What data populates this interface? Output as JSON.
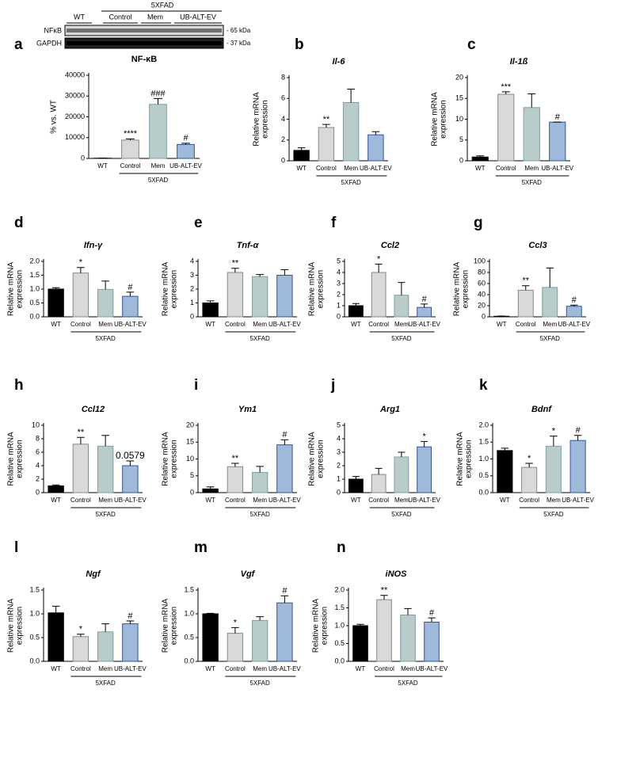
{
  "blot": {
    "group": "5XFAD",
    "lanes": [
      "WT",
      "Control",
      "Mem",
      "UB-ALT-EV"
    ],
    "rows": [
      "NFκB",
      "GAPDH"
    ],
    "sizes": [
      "- 65 kDa",
      "- 37 kDa"
    ]
  },
  "chart_data": [
    {
      "type": "bar",
      "panel": "a",
      "title": "NF-κB",
      "italic": false,
      "ylabel": [
        "% vs. WT"
      ],
      "categories": [
        "WT",
        "Control",
        "Mem",
        "UB-ALT-EV"
      ],
      "group_label": "5XFAD",
      "values": [
        100,
        8800,
        26000,
        6700
      ],
      "errors": [
        50,
        600,
        2800,
        600
      ],
      "annotations": [
        null,
        "****",
        "###",
        "#"
      ],
      "ylim": [
        0,
        40000
      ],
      "yticks": [
        0,
        10000,
        20000,
        30000,
        40000
      ],
      "colors": [
        "#000000",
        "#d9d9d9",
        "#b8cccc",
        "#9fb9db"
      ],
      "edge_colors": [
        "#000000",
        "#888888",
        "#7f9f9f",
        "#2f5597"
      ]
    },
    {
      "type": "bar",
      "panel": "b",
      "title": "Il-6",
      "italic": true,
      "ylabel": [
        "Relative mRNA",
        "expression"
      ],
      "categories": [
        "WT",
        "Control",
        "Mem",
        "UB-ALT-EV"
      ],
      "group_label": "5XFAD",
      "values": [
        1.0,
        3.2,
        5.6,
        2.5
      ],
      "errors": [
        0.25,
        0.3,
        1.3,
        0.3
      ],
      "annotations": [
        null,
        "**",
        null,
        null
      ],
      "ylim": [
        0,
        8
      ],
      "yticks": [
        0,
        2,
        4,
        6,
        8
      ],
      "colors": [
        "#000000",
        "#d9d9d9",
        "#b8cccc",
        "#9fb9db"
      ],
      "edge_colors": [
        "#000000",
        "#888888",
        "#7f9f9f",
        "#2f5597"
      ]
    },
    {
      "type": "bar",
      "panel": "c",
      "title": "Il-1ß",
      "italic": true,
      "ylabel": [
        "Relative mRNA",
        "expression"
      ],
      "categories": [
        "WT",
        "Control",
        "Mem",
        "UB-ALT-EV"
      ],
      "group_label": "5XFAD",
      "values": [
        0.9,
        16,
        12.8,
        9.3
      ],
      "errors": [
        0.3,
        0.6,
        3.3,
        0
      ],
      "annotations": [
        null,
        "***",
        null,
        "#"
      ],
      "ylim": [
        0,
        20
      ],
      "yticks": [
        0,
        5,
        10,
        15,
        20
      ],
      "colors": [
        "#000000",
        "#d9d9d9",
        "#b8cccc",
        "#9fb9db"
      ],
      "edge_colors": [
        "#000000",
        "#888888",
        "#7f9f9f",
        "#2f5597"
      ]
    },
    {
      "type": "bar",
      "panel": "d",
      "title": "Ifn-γ",
      "italic": true,
      "ylabel": [
        "Relative mRNA",
        "expression"
      ],
      "categories": [
        "WT",
        "Control",
        "Mem",
        "UB-ALT-EV"
      ],
      "group_label": "5XFAD",
      "values": [
        1.0,
        1.58,
        0.99,
        0.74
      ],
      "errors": [
        0.05,
        0.2,
        0.3,
        0.15
      ],
      "annotations": [
        null,
        "*",
        null,
        "#"
      ],
      "ylim": [
        0,
        2
      ],
      "yticks": [
        {
          "value": 0,
          "label": "0.0"
        },
        0.5,
        {
          "value": 1,
          "label": "1.0"
        },
        1.5,
        {
          "value": 2,
          "label": "2.0"
        }
      ],
      "colors": [
        "#000000",
        "#d9d9d9",
        "#b8cccc",
        "#9fb9db"
      ],
      "edge_colors": [
        "#000000",
        "#888888",
        "#7f9f9f",
        "#2f5597"
      ]
    },
    {
      "type": "bar",
      "panel": "e",
      "title": "Tnf-α",
      "italic": true,
      "ylabel": [
        "Relative mRNA",
        "expression"
      ],
      "categories": [
        "WT",
        "Control",
        "Mem",
        "UB-ALT-EV"
      ],
      "group_label": "5XFAD",
      "values": [
        1.0,
        3.2,
        2.9,
        3.0
      ],
      "errors": [
        0.15,
        0.3,
        0.15,
        0.4
      ],
      "annotations": [
        null,
        "**",
        null,
        null
      ],
      "ylim": [
        0,
        4
      ],
      "yticks": [
        0,
        1,
        2,
        3,
        4
      ],
      "colors": [
        "#000000",
        "#d9d9d9",
        "#b8cccc",
        "#9fb9db"
      ],
      "edge_colors": [
        "#000000",
        "#888888",
        "#7f9f9f",
        "#2f5597"
      ]
    },
    {
      "type": "bar",
      "panel": "f",
      "title": "Ccl2",
      "italic": true,
      "ylabel": [
        "Relative mRNA",
        "expression"
      ],
      "categories": [
        "WT",
        "Control",
        "Mem",
        "UB-ALT-EV"
      ],
      "group_label": "5XFAD",
      "values": [
        1.0,
        4.0,
        1.95,
        0.85
      ],
      "errors": [
        0.2,
        0.75,
        1.15,
        0.3
      ],
      "annotations": [
        null,
        "*",
        null,
        "#"
      ],
      "ylim": [
        0,
        5
      ],
      "yticks": [
        0,
        1,
        2,
        3,
        4,
        5
      ],
      "colors": [
        "#000000",
        "#d9d9d9",
        "#b8cccc",
        "#9fb9db"
      ],
      "edge_colors": [
        "#000000",
        "#888888",
        "#7f9f9f",
        "#2f5597"
      ]
    },
    {
      "type": "bar",
      "panel": "g",
      "title": "Ccl3",
      "italic": true,
      "ylabel": [
        "Relative mRNA",
        "expression"
      ],
      "categories": [
        "WT",
        "Control",
        "Mem",
        "UB-ALT-EV"
      ],
      "group_label": "5XFAD",
      "values": [
        1,
        48,
        53,
        19
      ],
      "errors": [
        0.5,
        8,
        35,
        2
      ],
      "annotations": [
        null,
        "**",
        null,
        "#"
      ],
      "ylim": [
        0,
        100
      ],
      "yticks": [
        0,
        20,
        40,
        60,
        80,
        100
      ],
      "colors": [
        "#000000",
        "#d9d9d9",
        "#b8cccc",
        "#9fb9db"
      ],
      "edge_colors": [
        "#000000",
        "#888888",
        "#7f9f9f",
        "#2f5597"
      ]
    },
    {
      "type": "bar",
      "panel": "h",
      "title": "Ccl12",
      "italic": true,
      "ylabel": [
        "Relative mRNA",
        "expression"
      ],
      "categories": [
        "WT",
        "Control",
        "Mem",
        "UB-ALT-EV"
      ],
      "group_label": "5XFAD",
      "values": [
        1.0,
        7.2,
        6.9,
        4.0
      ],
      "errors": [
        0.15,
        1.0,
        1.6,
        0.7
      ],
      "annotations": [
        null,
        "**",
        null,
        "0.0579"
      ],
      "ylim": [
        0,
        10
      ],
      "yticks": [
        0,
        2,
        4,
        6,
        8,
        10
      ],
      "colors": [
        "#000000",
        "#d9d9d9",
        "#b8cccc",
        "#9fb9db"
      ],
      "edge_colors": [
        "#000000",
        "#888888",
        "#7f9f9f",
        "#2f5597"
      ]
    },
    {
      "type": "bar",
      "panel": "i",
      "title": "Ym1",
      "italic": true,
      "ylabel": [
        "Relative mRNA",
        "expression"
      ],
      "categories": [
        "WT",
        "Control",
        "Mem",
        "UB-ALT-EV"
      ],
      "group_label": "5XFAD",
      "values": [
        1.1,
        7.7,
        6.0,
        14.2
      ],
      "errors": [
        0.6,
        1.0,
        1.8,
        1.5
      ],
      "annotations": [
        null,
        "**",
        null,
        "#"
      ],
      "ylim": [
        0,
        20
      ],
      "yticks": [
        0,
        5,
        10,
        15,
        20
      ],
      "colors": [
        "#000000",
        "#d9d9d9",
        "#b8cccc",
        "#9fb9db"
      ],
      "edge_colors": [
        "#000000",
        "#888888",
        "#7f9f9f",
        "#2f5597"
      ]
    },
    {
      "type": "bar",
      "panel": "j",
      "title": "Arg1",
      "italic": true,
      "ylabel": [
        "Relative mRNA",
        "expression"
      ],
      "categories": [
        "WT",
        "Control",
        "Mem",
        "UB-ALT-EV"
      ],
      "group_label": "5XFAD",
      "values": [
        1.0,
        1.35,
        2.65,
        3.4
      ],
      "errors": [
        0.2,
        0.45,
        0.35,
        0.4
      ],
      "annotations": [
        null,
        null,
        null,
        "*"
      ],
      "ylim": [
        0,
        5
      ],
      "yticks": [
        0,
        1,
        2,
        3,
        4,
        5
      ],
      "colors": [
        "#000000",
        "#d9d9d9",
        "#b8cccc",
        "#9fb9db"
      ],
      "edge_colors": [
        "#000000",
        "#888888",
        "#7f9f9f",
        "#2f5597"
      ]
    },
    {
      "type": "bar",
      "panel": "k",
      "title": "Bdnf",
      "italic": true,
      "ylabel": [
        "Relative mRNA",
        "expression"
      ],
      "categories": [
        "WT",
        "Control",
        "Mem",
        "UB-ALT-EV"
      ],
      "group_label": "5XFAD",
      "values": [
        1.25,
        0.75,
        1.38,
        1.55
      ],
      "errors": [
        0.07,
        0.12,
        0.3,
        0.15
      ],
      "annotations": [
        null,
        "*",
        "*",
        "#"
      ],
      "ylim": [
        0,
        2
      ],
      "yticks": [
        {
          "value": 0,
          "label": "0.0"
        },
        0.5,
        {
          "value": 1,
          "label": "1.0"
        },
        1.5,
        {
          "value": 2,
          "label": "2.0"
        }
      ],
      "colors": [
        "#000000",
        "#d9d9d9",
        "#b8cccc",
        "#9fb9db"
      ],
      "edge_colors": [
        "#000000",
        "#888888",
        "#7f9f9f",
        "#2f5597"
      ]
    },
    {
      "type": "bar",
      "panel": "l",
      "title": "Ngf",
      "italic": true,
      "ylabel": [
        "Relative mRNA",
        "expression"
      ],
      "categories": [
        "WT",
        "Control",
        "Mem",
        "UB-ALT-EV"
      ],
      "group_label": "5XFAD",
      "values": [
        1.02,
        0.52,
        0.62,
        0.79
      ],
      "errors": [
        0.14,
        0.05,
        0.17,
        0.06
      ],
      "annotations": [
        null,
        "*",
        null,
        "#"
      ],
      "ylim": [
        0,
        1.5
      ],
      "yticks": [
        {
          "value": 0,
          "label": "0.0"
        },
        0.5,
        {
          "value": 1,
          "label": "1.0"
        },
        1.5
      ],
      "colors": [
        "#000000",
        "#d9d9d9",
        "#b8cccc",
        "#9fb9db"
      ],
      "edge_colors": [
        "#000000",
        "#888888",
        "#7f9f9f",
        "#2f5597"
      ]
    },
    {
      "type": "bar",
      "panel": "m",
      "title": "Vgf",
      "italic": true,
      "ylabel": [
        "Relative mRNA",
        "expression"
      ],
      "categories": [
        "WT",
        "Control",
        "Mem",
        "UB-ALT-EV"
      ],
      "group_label": "5XFAD",
      "values": [
        1.0,
        0.59,
        0.86,
        1.23
      ],
      "errors": [
        0.01,
        0.12,
        0.08,
        0.15
      ],
      "annotations": [
        null,
        "*",
        null,
        "#"
      ],
      "ylim": [
        0,
        1.5
      ],
      "yticks": [
        {
          "value": 0,
          "label": "0.0"
        },
        0.5,
        {
          "value": 1,
          "label": "1.0"
        },
        1.5
      ],
      "colors": [
        "#000000",
        "#d9d9d9",
        "#b8cccc",
        "#9fb9db"
      ],
      "edge_colors": [
        "#000000",
        "#888888",
        "#7f9f9f",
        "#2f5597"
      ]
    },
    {
      "type": "bar",
      "panel": "n",
      "title": "iNOS",
      "italic": true,
      "ylabel": [
        "Relative mRNA",
        "expression"
      ],
      "categories": [
        "WT",
        "Control",
        "Mem",
        "UB-ALT-EV"
      ],
      "group_label": "5XFAD",
      "values": [
        1.0,
        1.73,
        1.3,
        1.1
      ],
      "errors": [
        0.04,
        0.12,
        0.18,
        0.12
      ],
      "annotations": [
        null,
        "**",
        null,
        "#"
      ],
      "ylim": [
        0,
        2
      ],
      "yticks": [
        {
          "value": 0,
          "label": "0.0"
        },
        0.5,
        {
          "value": 1,
          "label": "1.0"
        },
        1.5,
        {
          "value": 2,
          "label": "2.0"
        }
      ],
      "colors": [
        "#000000",
        "#d9d9d9",
        "#b8cccc",
        "#9fb9db"
      ],
      "edge_colors": [
        "#000000",
        "#888888",
        "#7f9f9f",
        "#2f5597"
      ]
    }
  ]
}
